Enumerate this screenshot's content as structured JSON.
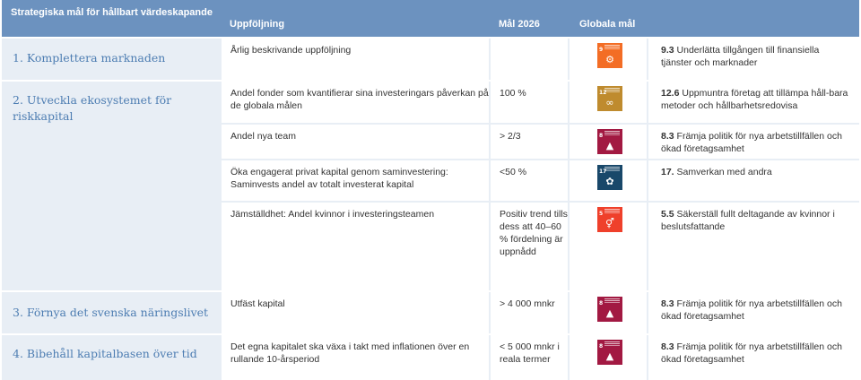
{
  "header": {
    "col1": "Strategiska mål för hållbart värdeskapande",
    "col2": "Uppföljning",
    "col3": "Mål 2026",
    "col4": "Globala mål"
  },
  "goals": [
    {
      "title": "1. Komplettera marknaden",
      "rows": [
        {
          "followup": "Årlig beskrivande uppföljning",
          "target": "",
          "sdg_num": "9",
          "sdg_color": "#f36d25",
          "sdg_glyph": "⚙",
          "sdg_icon": "industry-innovation-icon",
          "target_code": "9.3",
          "target_text": "Underlätta tillgången till finansiella tjänster och marknader"
        }
      ]
    },
    {
      "title": "2. Utveckla ekosystemet för riskkapital",
      "rows": [
        {
          "followup": "Andel fonder som kvantifierar sina investeringars påverkan på de globala målen",
          "target": "100 %",
          "sdg_num": "12",
          "sdg_color": "#bf8b2e",
          "sdg_glyph": "∞",
          "sdg_icon": "responsible-consumption-icon",
          "target_code": "12.6",
          "target_text": "Uppmuntra företag att tillämpa håll-bara metoder och hållbarhetsredovisa"
        },
        {
          "followup": "Andel nya team",
          "target": "> 2/3",
          "sdg_num": "8",
          "sdg_color": "#a21942",
          "sdg_glyph": "▲",
          "sdg_icon": "decent-work-icon",
          "target_code": "8.3",
          "target_text": "Främja politik för nya arbetstillfällen och ökad företagsamhet"
        },
        {
          "followup": "Öka engagerat privat kapital genom saminvestering: Saminvests andel av totalt investerat kapital",
          "target": "<50 %",
          "sdg_num": "17",
          "sdg_color": "#19486a",
          "sdg_glyph": "✿",
          "sdg_icon": "partnerships-icon",
          "target_code": "17.",
          "target_text": "Samverkan med andra"
        },
        {
          "followup": "Jämställdhet: Andel kvinnor i investeringsteamen",
          "target": "Positiv trend tills dess att 40–60 % fördelning är uppnådd",
          "sdg_num": "5",
          "sdg_color": "#ef402b",
          "sdg_glyph": "⚥",
          "sdg_icon": "gender-equality-icon",
          "target_code": "5.5",
          "target_text": "Säkerställ fullt deltagande av kvinnor i beslutsfattande"
        }
      ]
    },
    {
      "title": "3. Förnya det svenska näringslivet",
      "rows": [
        {
          "followup": "Utfäst kapital",
          "target": "> 4 000 mnkr",
          "sdg_num": "8",
          "sdg_color": "#a21942",
          "sdg_glyph": "▲",
          "sdg_icon": "decent-work-icon",
          "target_code": "8.3",
          "target_text": "Främja politik för nya arbetstillfällen och ökad företagsamhet"
        }
      ]
    },
    {
      "title": "4. Bibehåll kapitalbasen över tid",
      "rows": [
        {
          "followup": "Det egna kapitalet ska växa i takt med inflationen över en rullande 10-årsperiod",
          "target": "< 5 000 mnkr i reala termer",
          "sdg_num": "8",
          "sdg_color": "#a21942",
          "sdg_glyph": "▲",
          "sdg_icon": "decent-work-icon",
          "target_code": "8.3",
          "target_text": "Främja politik för nya arbetstillfällen och ökad företagsamhet"
        }
      ]
    }
  ]
}
